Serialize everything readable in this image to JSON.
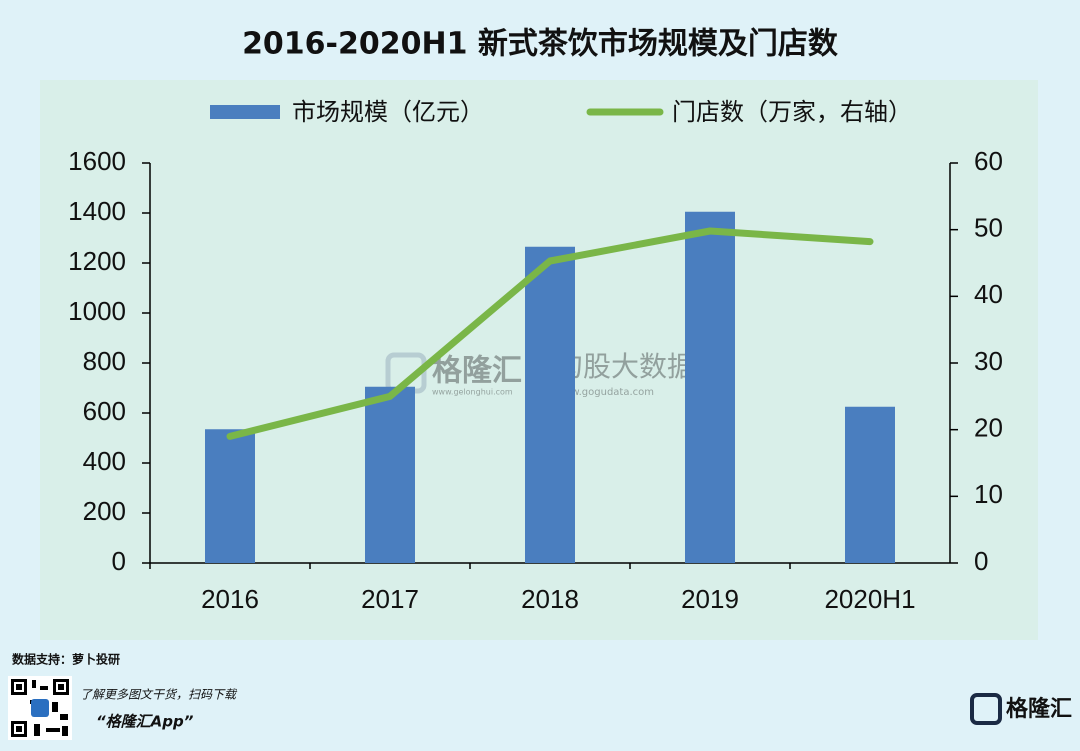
{
  "chart_data": {
    "type": "bar",
    "title": "2016-2020H1 新式茶饮市场规模及门店数",
    "categories": [
      "2016",
      "2017",
      "2018",
      "2019",
      "2020H1"
    ],
    "series": [
      {
        "name": "市场规模（亿元）",
        "type": "bar",
        "color": "#4a7ebf",
        "values": [
          535,
          705,
          1265,
          1405,
          625
        ]
      },
      {
        "name": "门店数（万家，右轴）",
        "type": "line",
        "axis": "y2",
        "color": "#7ab648",
        "values": [
          19,
          25,
          45.3,
          49.8,
          48.2
        ]
      }
    ],
    "ylim": [
      0,
      1600
    ],
    "yticks": [
      0,
      200,
      400,
      600,
      800,
      1000,
      1200,
      1400,
      1600
    ],
    "y2lim": [
      0,
      60
    ],
    "y2ticks": [
      0,
      10,
      20,
      30,
      40,
      50,
      60
    ],
    "legend": "top",
    "grid": false
  },
  "watermark": {
    "brand": "格隆汇",
    "brand_url": "www.gelonghui.com",
    "data_brand": "勾股大数据",
    "data_url": "www.gogudata.com"
  },
  "footer": {
    "source": "数据支持：萝卜投研",
    "promo": "了解更多图文干货，扫码下载",
    "app": "“格隆汇App”",
    "logo": "格隆汇"
  }
}
